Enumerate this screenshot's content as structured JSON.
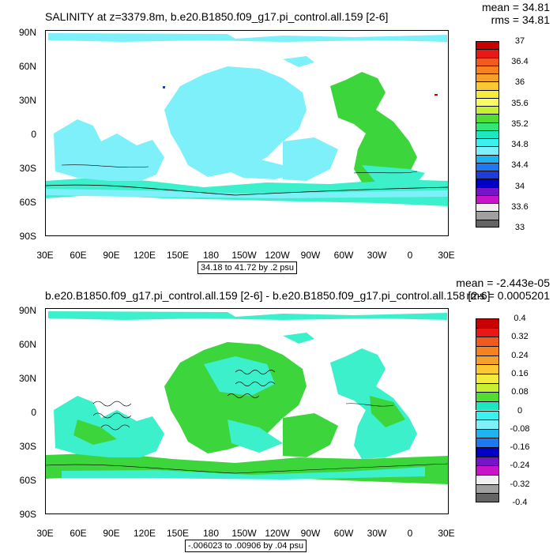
{
  "panel1": {
    "title": "SALINITY at z=3379.8m, b.e20.B1850.f09_g17.pi_control.all.159 [2-6]",
    "mean": "mean = 34.81",
    "rms": "rms = 34.81",
    "contour_info": "34.18 to 41.72 by .2 psu",
    "colorbar": {
      "labels": [
        "37",
        "36.4",
        "36",
        "35.6",
        "35.2",
        "34.8",
        "34.4",
        "34",
        "33.6",
        "33"
      ],
      "colors": [
        "#c80000",
        "#e81818",
        "#f05a1e",
        "#f5821e",
        "#f5a028",
        "#fac832",
        "#f5eb3c",
        "#fafa64",
        "#c8f032",
        "#50dc32",
        "#32e678",
        "#1ee6be",
        "#3cf0f0",
        "#7ef0fa",
        "#1eb4f0",
        "#1e78f0",
        "#1e3cdc",
        "#0000c8",
        "#7814c8",
        "#c814c8",
        "#f0f0f0",
        "#a0a0a0",
        "#646464"
      ]
    }
  },
  "panel2": {
    "title": "b.e20.B1850.f09_g17.pi_control.all.159 [2-6] - b.e20.B1850.f09_g17.pi_control.all.158 [2-6]",
    "mean": "mean = -2.443e-05",
    "rms": "rms = 0.0005201",
    "contour_info": "-.006023 to .00906 by .04 psu",
    "colorbar": {
      "labels": [
        "0.4",
        "0.32",
        "0.24",
        "0.16",
        "0.08",
        "0",
        "-0.08",
        "-0.16",
        "-0.24",
        "-0.32",
        "-0.4"
      ],
      "colors": [
        "#c80000",
        "#e81818",
        "#f05a1e",
        "#f5821e",
        "#f5a028",
        "#fac832",
        "#f5eb3c",
        "#c8f032",
        "#50dc32",
        "#1ee6be",
        "#3cf0f0",
        "#7ef0fa",
        "#1eb4f0",
        "#1e78f0",
        "#0000c8",
        "#7814c8",
        "#c814c8",
        "#f0f0f0",
        "#a0a0a0",
        "#646464"
      ]
    }
  },
  "lat_labels": [
    "90N",
    "60N",
    "30N",
    "0",
    "30S",
    "60S",
    "90S"
  ],
  "lon_labels": [
    "30E",
    "60E",
    "90E",
    "120E",
    "150E",
    "180",
    "150W",
    "120W",
    "90W",
    "60W",
    "30W",
    "0",
    "30E"
  ]
}
